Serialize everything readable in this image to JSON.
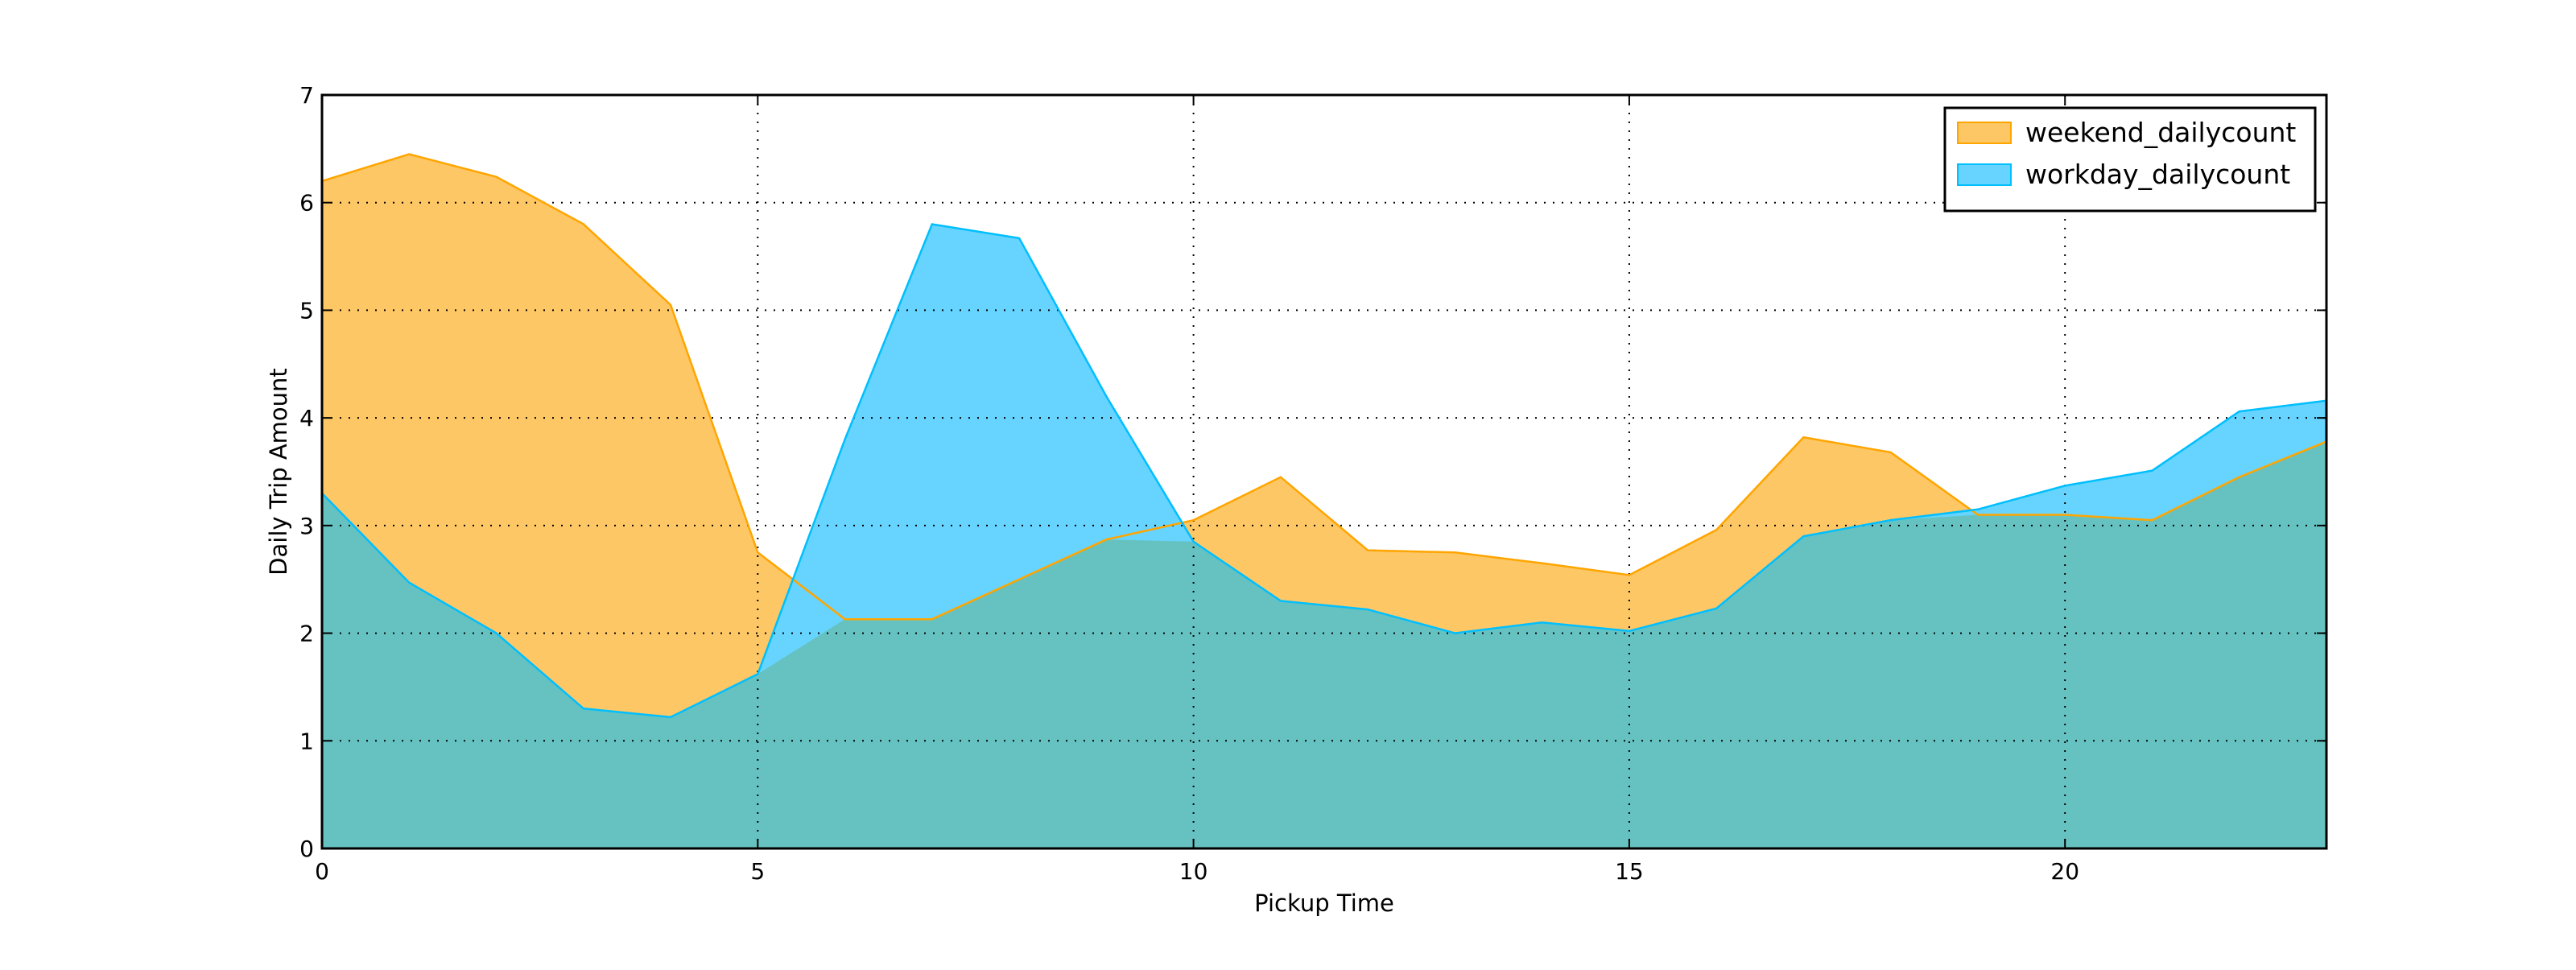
{
  "chart_data": {
    "type": "area",
    "title": "",
    "xlabel": "Pickup Time",
    "ylabel": "Daily Trip Amount",
    "xlim": [
      0,
      23
    ],
    "ylim": [
      0,
      7
    ],
    "xticks": [
      0,
      5,
      10,
      15,
      20
    ],
    "yticks": [
      0,
      1,
      2,
      3,
      4,
      5,
      6,
      7
    ],
    "xtick_labels": [
      "0",
      "5",
      "10",
      "15",
      "20"
    ],
    "ytick_labels": [
      "0",
      "1",
      "2",
      "3",
      "4",
      "5",
      "6",
      "7"
    ],
    "grid": true,
    "legend_position": "top-right",
    "x": [
      0,
      1,
      2,
      3,
      4,
      5,
      6,
      7,
      8,
      9,
      10,
      11,
      12,
      13,
      14,
      15,
      16,
      17,
      18,
      19,
      20,
      21,
      22,
      23
    ],
    "series": [
      {
        "name": "weekend_dailycount",
        "color": "#ffa500",
        "fill": "#fdc765",
        "values": [
          6.2,
          6.45,
          6.24,
          5.8,
          5.05,
          2.75,
          2.13,
          2.13,
          2.5,
          2.87,
          3.05,
          3.45,
          2.77,
          2.75,
          2.65,
          2.54,
          2.96,
          3.82,
          3.68,
          3.1,
          3.1,
          3.05,
          3.45,
          3.78
        ]
      },
      {
        "name": "workday_dailycount",
        "color": "#00bfff",
        "fill": "#66d4fe",
        "values": [
          3.3,
          2.47,
          2.0,
          1.3,
          1.22,
          1.62,
          3.8,
          5.8,
          5.67,
          4.2,
          2.85,
          2.3,
          2.22,
          2.0,
          2.1,
          2.02,
          2.23,
          2.9,
          3.05,
          3.15,
          3.37,
          3.51,
          4.06,
          4.16
        ]
      }
    ],
    "overlap_fill": "#66c2c1"
  }
}
